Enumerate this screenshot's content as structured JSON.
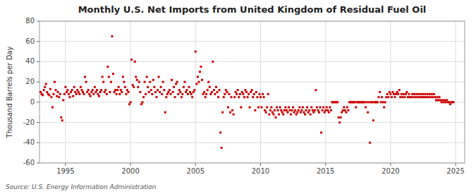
{
  "chart_data": {
    "type": "scatter",
    "title": "Monthly U.S. Net Imports from United Kingdom of Residual Fuel Oil",
    "y_label": "Thousand Barrels per Day",
    "source": "Source: U.S. Energy Information Administration",
    "xlim": [
      1993.0,
      2025.7
    ],
    "xticks": [
      1995,
      2000,
      2005,
      2010,
      2015,
      2020,
      2025
    ],
    "ylim": [
      -60,
      80
    ],
    "yticks": [
      -60,
      -40,
      -20,
      0,
      20,
      40,
      60,
      80
    ],
    "grid": true,
    "color": "#cc0000",
    "marker": "square",
    "x": [
      1993.083,
      1993.167,
      1993.25,
      1993.333,
      1993.417,
      1993.5,
      1993.583,
      1993.667,
      1993.75,
      1993.833,
      1993.917,
      1994.0,
      1994.083,
      1994.167,
      1994.25,
      1994.333,
      1994.417,
      1994.5,
      1994.583,
      1994.667,
      1994.75,
      1994.833,
      1994.917,
      1995.0,
      1995.083,
      1995.167,
      1995.25,
      1995.333,
      1995.417,
      1995.5,
      1995.583,
      1995.667,
      1995.75,
      1995.833,
      1995.917,
      1996.0,
      1996.083,
      1996.167,
      1996.25,
      1996.333,
      1996.417,
      1996.5,
      1996.583,
      1996.667,
      1996.75,
      1996.833,
      1996.917,
      1997.0,
      1997.083,
      1997.167,
      1997.25,
      1997.333,
      1997.417,
      1997.5,
      1997.583,
      1997.667,
      1997.75,
      1997.833,
      1997.917,
      1998.0,
      1998.083,
      1998.167,
      1998.25,
      1998.333,
      1998.417,
      1998.5,
      1998.583,
      1998.667,
      1998.75,
      1998.833,
      1998.917,
      1999.0,
      1999.083,
      1999.167,
      1999.25,
      1999.333,
      1999.417,
      1999.5,
      1999.583,
      1999.667,
      1999.75,
      1999.833,
      1999.917,
      2000.0,
      2000.083,
      2000.167,
      2000.25,
      2000.333,
      2000.417,
      2000.5,
      2000.583,
      2000.667,
      2000.75,
      2000.833,
      2000.917,
      2001.0,
      2001.083,
      2001.167,
      2001.25,
      2001.333,
      2001.417,
      2001.5,
      2001.583,
      2001.667,
      2001.75,
      2001.833,
      2001.917,
      2002.0,
      2002.083,
      2002.167,
      2002.25,
      2002.333,
      2002.417,
      2002.5,
      2002.583,
      2002.667,
      2002.75,
      2002.833,
      2002.917,
      2003.0,
      2003.083,
      2003.167,
      2003.25,
      2003.333,
      2003.417,
      2003.5,
      2003.583,
      2003.667,
      2003.75,
      2003.833,
      2003.917,
      2004.0,
      2004.083,
      2004.167,
      2004.25,
      2004.333,
      2004.417,
      2004.5,
      2004.583,
      2004.667,
      2004.75,
      2004.833,
      2004.917,
      2005.0,
      2005.083,
      2005.167,
      2005.25,
      2005.333,
      2005.417,
      2005.5,
      2005.583,
      2005.667,
      2005.75,
      2005.833,
      2005.917,
      2006.0,
      2006.083,
      2006.167,
      2006.25,
      2006.333,
      2006.417,
      2006.5,
      2006.583,
      2006.667,
      2006.75,
      2006.833,
      2006.917,
      2007.0,
      2007.083,
      2007.167,
      2007.25,
      2007.333,
      2007.417,
      2007.5,
      2007.583,
      2007.667,
      2007.75,
      2007.833,
      2007.917,
      2008.0,
      2008.083,
      2008.167,
      2008.25,
      2008.333,
      2008.417,
      2008.5,
      2008.583,
      2008.667,
      2008.75,
      2008.833,
      2008.917,
      2009.0,
      2009.083,
      2009.167,
      2009.25,
      2009.333,
      2009.417,
      2009.5,
      2009.583,
      2009.667,
      2009.75,
      2009.833,
      2009.917,
      2010.0,
      2010.083,
      2010.167,
      2010.25,
      2010.333,
      2010.417,
      2010.5,
      2010.583,
      2010.667,
      2010.75,
      2010.833,
      2010.917,
      2011.0,
      2011.083,
      2011.167,
      2011.25,
      2011.333,
      2011.417,
      2011.5,
      2011.583,
      2011.667,
      2011.75,
      2011.833,
      2011.917,
      2012.0,
      2012.083,
      2012.167,
      2012.25,
      2012.333,
      2012.417,
      2012.5,
      2012.583,
      2012.667,
      2012.75,
      2012.833,
      2012.917,
      2013.0,
      2013.083,
      2013.167,
      2013.25,
      2013.333,
      2013.417,
      2013.5,
      2013.583,
      2013.667,
      2013.75,
      2013.833,
      2013.917,
      2014.0,
      2014.083,
      2014.167,
      2014.25,
      2014.333,
      2014.417,
      2014.5,
      2014.583,
      2014.667,
      2014.75,
      2014.833,
      2014.917,
      2015.0,
      2015.083,
      2015.167,
      2015.25,
      2015.333,
      2015.417,
      2015.5,
      2015.583,
      2015.667,
      2015.75,
      2015.833,
      2015.917,
      2016.0,
      2016.083,
      2016.167,
      2016.25,
      2016.333,
      2016.417,
      2016.5,
      2016.583,
      2016.667,
      2016.75,
      2016.833,
      2016.917,
      2017.0,
      2017.083,
      2017.167,
      2017.25,
      2017.333,
      2017.417,
      2017.5,
      2017.583,
      2017.667,
      2017.75,
      2017.833,
      2017.917,
      2018.0,
      2018.083,
      2018.167,
      2018.25,
      2018.333,
      2018.417,
      2018.5,
      2018.583,
      2018.667,
      2018.75,
      2018.833,
      2018.917,
      2019.0,
      2019.083,
      2019.167,
      2019.25,
      2019.333,
      2019.417,
      2019.5,
      2019.583,
      2019.667,
      2019.75,
      2019.833,
      2019.917,
      2020.0,
      2020.083,
      2020.167,
      2020.25,
      2020.333,
      2020.417,
      2020.5,
      2020.583,
      2020.667,
      2020.75,
      2020.833,
      2020.917,
      2021.0,
      2021.083,
      2021.167,
      2021.25,
      2021.333,
      2021.417,
      2021.5,
      2021.583,
      2021.667,
      2021.75,
      2021.833,
      2021.917,
      2022.0,
      2022.083,
      2022.167,
      2022.25,
      2022.333,
      2022.417,
      2022.5,
      2022.583,
      2022.667,
      2022.75,
      2022.833,
      2022.917,
      2023.0,
      2023.083,
      2023.167,
      2023.25,
      2023.333,
      2023.417,
      2023.5,
      2023.583,
      2023.667,
      2023.75,
      2023.833,
      2023.917,
      2024.0,
      2024.083,
      2024.167,
      2024.25,
      2024.333,
      2024.417,
      2024.5,
      2024.583,
      2024.667,
      2024.75,
      2024.833
    ],
    "values": [
      10,
      8,
      7,
      12,
      15,
      18,
      10,
      8,
      7,
      13,
      5,
      -5,
      8,
      20,
      12,
      6,
      10,
      5,
      8,
      -15,
      -18,
      2,
      8,
      15,
      10,
      12,
      8,
      5,
      10,
      12,
      6,
      15,
      10,
      8,
      12,
      10,
      8,
      15,
      12,
      10,
      8,
      25,
      20,
      10,
      12,
      8,
      6,
      10,
      12,
      8,
      15,
      10,
      12,
      8,
      6,
      10,
      12,
      25,
      20,
      10,
      12,
      8,
      35,
      25,
      10,
      20,
      65,
      28,
      10,
      12,
      8,
      12,
      15,
      8,
      12,
      10,
      25,
      20,
      15,
      8,
      12,
      10,
      -2,
      0,
      42,
      17,
      15,
      40,
      25,
      22,
      15,
      20,
      10,
      -2,
      0,
      5,
      20,
      8,
      25,
      15,
      10,
      20,
      12,
      8,
      22,
      15,
      10,
      5,
      12,
      25,
      10,
      15,
      8,
      20,
      12,
      -10,
      5,
      8,
      10,
      12,
      8,
      22,
      10,
      15,
      5,
      18,
      20,
      8,
      12,
      10,
      5,
      8,
      15,
      20,
      10,
      12,
      8,
      15,
      10,
      8,
      5,
      10,
      12,
      50,
      18,
      25,
      20,
      30,
      35,
      22,
      8,
      10,
      5,
      8,
      12,
      20,
      15,
      8,
      10,
      40,
      12,
      8,
      15,
      10,
      5,
      12,
      -30,
      -45,
      -10,
      5,
      8,
      12,
      10,
      -5,
      8,
      -10,
      5,
      -8,
      -12,
      5,
      10,
      8,
      12,
      5,
      8,
      -5,
      10,
      8,
      5,
      12,
      10,
      5,
      8,
      -5,
      10,
      12,
      5,
      8,
      -8,
      10,
      5,
      -5,
      8,
      5,
      -5,
      8,
      5,
      -8,
      -10,
      -5,
      8,
      -12,
      -8,
      -5,
      -10,
      -12,
      -8,
      -15,
      -5,
      -8,
      -12,
      -5,
      -8,
      -10,
      -12,
      -8,
      -5,
      -8,
      -10,
      -5,
      -8,
      -12,
      -8,
      -5,
      -10,
      -8,
      -12,
      -10,
      -8,
      -5,
      -10,
      -8,
      -5,
      -10,
      -12,
      -8,
      -5,
      -10,
      -8,
      -12,
      -5,
      -8,
      -10,
      -8,
      12,
      -5,
      -8,
      -10,
      -5,
      -30,
      -8,
      -5,
      -10,
      -8,
      -5,
      -8,
      -10,
      -5,
      -8,
      0,
      0,
      0,
      0,
      0,
      0,
      -15,
      -20,
      -15,
      -10,
      -8,
      -5,
      -8,
      -10,
      -5,
      -8,
      0,
      0,
      0,
      0,
      0,
      0,
      -5,
      0,
      0,
      0,
      0,
      0,
      0,
      0,
      0,
      -5,
      0,
      -10,
      0,
      -40,
      0,
      0,
      -18,
      0,
      0,
      0,
      0,
      5,
      10,
      0,
      5,
      0,
      -5,
      0,
      5,
      8,
      5,
      10,
      8,
      5,
      10,
      8,
      5,
      8,
      10,
      8,
      12,
      5,
      8,
      5,
      8,
      5,
      8,
      10,
      5,
      8,
      5,
      5,
      8,
      5,
      8,
      5,
      8,
      5,
      8,
      5,
      8,
      5,
      8,
      5,
      8,
      5,
      8,
      5,
      8,
      5,
      8,
      5,
      8,
      5,
      2,
      5,
      2,
      5,
      2,
      0,
      2,
      0,
      2,
      0,
      2,
      0,
      0,
      -2,
      0,
      0,
      0
    ]
  }
}
